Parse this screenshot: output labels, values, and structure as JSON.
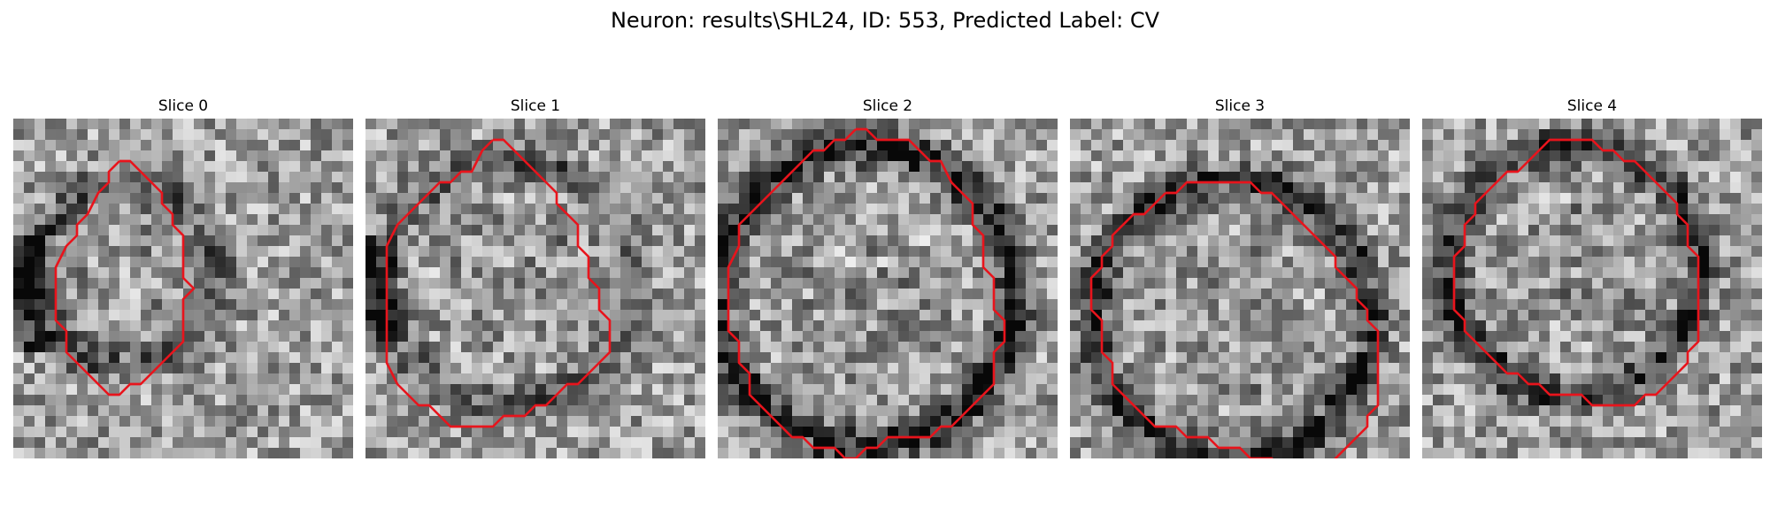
{
  "figure": {
    "title": "Neuron: results\\SHL24, ID: 553, Predicted Label: CV"
  },
  "colors": {
    "contour": "#e8141c",
    "background": "#ffffff"
  },
  "panels": [
    {
      "title": "Slice 0",
      "seed": 11,
      "ring_darkness": 0.35,
      "contour": [
        [
          10,
          4
        ],
        [
          11,
          4
        ],
        [
          12,
          5
        ],
        [
          13,
          6
        ],
        [
          14,
          7
        ],
        [
          14,
          8
        ],
        [
          15,
          9
        ],
        [
          15,
          10
        ],
        [
          16,
          11
        ],
        [
          16,
          15
        ],
        [
          17,
          16
        ],
        [
          16,
          17
        ],
        [
          16,
          21
        ],
        [
          15,
          22
        ],
        [
          14,
          23
        ],
        [
          13,
          24
        ],
        [
          12,
          25
        ],
        [
          11,
          25
        ],
        [
          10,
          26
        ],
        [
          9,
          26
        ],
        [
          8,
          25
        ],
        [
          7,
          24
        ],
        [
          6,
          23
        ],
        [
          5,
          22
        ],
        [
          5,
          20
        ],
        [
          4,
          19
        ],
        [
          4,
          14
        ],
        [
          5,
          12
        ],
        [
          6,
          11
        ],
        [
          6,
          10
        ],
        [
          7,
          9
        ],
        [
          8,
          7
        ],
        [
          9,
          6
        ],
        [
          9,
          5
        ],
        [
          10,
          4
        ]
      ]
    },
    {
      "title": "Slice 1",
      "seed": 23,
      "ring_darkness": 0.25,
      "contour": [
        [
          12,
          2
        ],
        [
          13,
          2
        ],
        [
          14,
          3
        ],
        [
          15,
          4
        ],
        [
          16,
          5
        ],
        [
          17,
          6
        ],
        [
          18,
          7
        ],
        [
          18,
          8
        ],
        [
          19,
          9
        ],
        [
          20,
          10
        ],
        [
          20,
          12
        ],
        [
          21,
          13
        ],
        [
          21,
          15
        ],
        [
          22,
          16
        ],
        [
          22,
          18
        ],
        [
          23,
          19
        ],
        [
          23,
          22
        ],
        [
          22,
          23
        ],
        [
          21,
          24
        ],
        [
          20,
          25
        ],
        [
          19,
          25
        ],
        [
          18,
          26
        ],
        [
          17,
          27
        ],
        [
          16,
          27
        ],
        [
          15,
          28
        ],
        [
          13,
          28
        ],
        [
          12,
          29
        ],
        [
          8,
          29
        ],
        [
          7,
          28
        ],
        [
          6,
          27
        ],
        [
          5,
          27
        ],
        [
          4,
          26
        ],
        [
          3,
          25
        ],
        [
          2,
          23
        ],
        [
          2,
          12
        ],
        [
          3,
          10
        ],
        [
          4,
          9
        ],
        [
          5,
          8
        ],
        [
          6,
          7
        ],
        [
          7,
          6
        ],
        [
          8,
          6
        ],
        [
          9,
          5
        ],
        [
          10,
          5
        ],
        [
          11,
          3
        ],
        [
          12,
          2
        ]
      ]
    },
    {
      "title": "Slice 2",
      "seed": 37,
      "ring_darkness": 0.6,
      "contour": [
        [
          13,
          1
        ],
        [
          14,
          1
        ],
        [
          15,
          2
        ],
        [
          18,
          2
        ],
        [
          19,
          3
        ],
        [
          20,
          4
        ],
        [
          21,
          4
        ],
        [
          22,
          6
        ],
        [
          23,
          7
        ],
        [
          24,
          8
        ],
        [
          24,
          10
        ],
        [
          25,
          11
        ],
        [
          25,
          14
        ],
        [
          26,
          15
        ],
        [
          26,
          18
        ],
        [
          27,
          19
        ],
        [
          27,
          21
        ],
        [
          26,
          22
        ],
        [
          26,
          25
        ],
        [
          25,
          26
        ],
        [
          24,
          27
        ],
        [
          23,
          28
        ],
        [
          22,
          29
        ],
        [
          21,
          29
        ],
        [
          20,
          30
        ],
        [
          18,
          30
        ],
        [
          16,
          30
        ],
        [
          15,
          31
        ],
        [
          14,
          31
        ],
        [
          13,
          32
        ],
        [
          12,
          32
        ],
        [
          11,
          31
        ],
        [
          9,
          31
        ],
        [
          8,
          30
        ],
        [
          7,
          30
        ],
        [
          6,
          29
        ],
        [
          5,
          28
        ],
        [
          4,
          27
        ],
        [
          3,
          26
        ],
        [
          3,
          24
        ],
        [
          2,
          23
        ],
        [
          2,
          21
        ],
        [
          1,
          20
        ],
        [
          1,
          14
        ],
        [
          2,
          12
        ],
        [
          2,
          10
        ],
        [
          3,
          9
        ],
        [
          4,
          8
        ],
        [
          5,
          7
        ],
        [
          6,
          6
        ],
        [
          7,
          5
        ],
        [
          8,
          4
        ],
        [
          9,
          3
        ],
        [
          10,
          3
        ],
        [
          11,
          2
        ],
        [
          12,
          2
        ],
        [
          13,
          1
        ]
      ]
    },
    {
      "title": "Slice 3",
      "seed": 53,
      "ring_darkness": 0.5,
      "contour": [
        [
          9,
          7
        ],
        [
          10,
          7
        ],
        [
          11,
          6
        ],
        [
          17,
          6
        ],
        [
          18,
          7
        ],
        [
          19,
          7
        ],
        [
          20,
          8
        ],
        [
          21,
          9
        ],
        [
          22,
          10
        ],
        [
          23,
          11
        ],
        [
          24,
          12
        ],
        [
          25,
          13
        ],
        [
          25,
          14
        ],
        [
          26,
          15
        ],
        [
          27,
          16
        ],
        [
          27,
          17
        ],
        [
          28,
          18
        ],
        [
          28,
          19
        ],
        [
          29,
          20
        ],
        [
          29,
          27
        ],
        [
          28,
          28
        ],
        [
          28,
          29
        ],
        [
          27,
          30
        ],
        [
          26,
          31
        ],
        [
          25,
          32
        ],
        [
          24,
          33
        ],
        [
          20,
          33
        ],
        [
          19,
          32
        ],
        [
          17,
          32
        ],
        [
          16,
          31
        ],
        [
          14,
          31
        ],
        [
          13,
          30
        ],
        [
          11,
          30
        ],
        [
          10,
          29
        ],
        [
          8,
          29
        ],
        [
          7,
          28
        ],
        [
          6,
          27
        ],
        [
          5,
          26
        ],
        [
          4,
          25
        ],
        [
          4,
          23
        ],
        [
          3,
          22
        ],
        [
          3,
          19
        ],
        [
          2,
          18
        ],
        [
          2,
          15
        ],
        [
          3,
          14
        ],
        [
          3,
          13
        ],
        [
          4,
          12
        ],
        [
          4,
          11
        ],
        [
          5,
          10
        ],
        [
          6,
          9
        ],
        [
          7,
          9
        ],
        [
          8,
          8
        ],
        [
          9,
          7
        ]
      ]
    },
    {
      "title": "Slice 4",
      "seed": 71,
      "ring_darkness": 0.45,
      "contour": [
        [
          11,
          3
        ],
        [
          12,
          2
        ],
        [
          16,
          2
        ],
        [
          17,
          3
        ],
        [
          18,
          3
        ],
        [
          19,
          4
        ],
        [
          20,
          4
        ],
        [
          21,
          5
        ],
        [
          22,
          6
        ],
        [
          23,
          7
        ],
        [
          24,
          8
        ],
        [
          24,
          9
        ],
        [
          25,
          10
        ],
        [
          25,
          12
        ],
        [
          26,
          13
        ],
        [
          26,
          21
        ],
        [
          25,
          22
        ],
        [
          25,
          23
        ],
        [
          24,
          24
        ],
        [
          23,
          25
        ],
        [
          22,
          26
        ],
        [
          21,
          26
        ],
        [
          20,
          27
        ],
        [
          16,
          27
        ],
        [
          15,
          26
        ],
        [
          12,
          26
        ],
        [
          11,
          25
        ],
        [
          10,
          25
        ],
        [
          9,
          24
        ],
        [
          8,
          24
        ],
        [
          7,
          23
        ],
        [
          6,
          22
        ],
        [
          5,
          21
        ],
        [
          4,
          20
        ],
        [
          4,
          19
        ],
        [
          3,
          18
        ],
        [
          3,
          13
        ],
        [
          4,
          12
        ],
        [
          4,
          10
        ],
        [
          5,
          9
        ],
        [
          5,
          8
        ],
        [
          6,
          7
        ],
        [
          7,
          6
        ],
        [
          8,
          5
        ],
        [
          9,
          5
        ],
        [
          10,
          4
        ],
        [
          11,
          3
        ]
      ]
    }
  ]
}
